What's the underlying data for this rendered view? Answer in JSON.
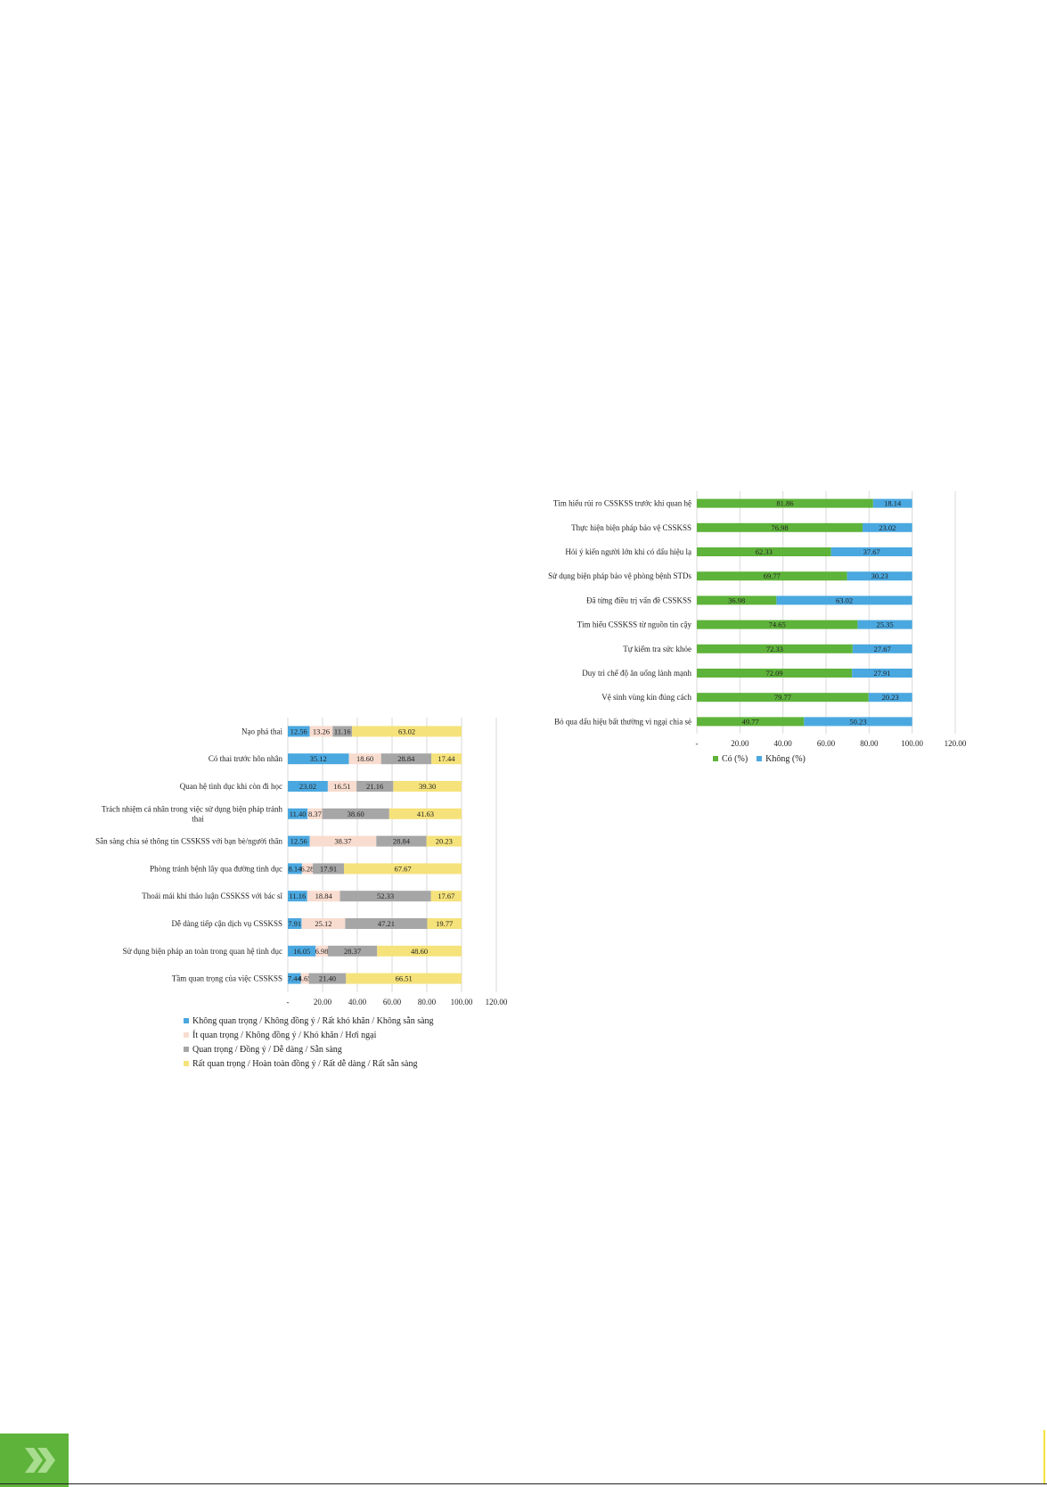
{
  "chart_data": [
    {
      "type": "bar",
      "orientation": "horizontal",
      "stacked": true,
      "categories": [
        "Tìm hiểu rủi ro CSSKSS trước khi quan hệ",
        "Thực hiện biện pháp bảo vệ CSSKSS",
        "Hỏi ý kiến người lớn khi có dấu hiệu lạ",
        "Sử dụng biện pháp bảo vệ phòng bệnh STDs",
        "Đã từng điều trị vấn đề CSSKSS",
        "Tìm hiểu CSSKSS từ nguồn tin cậy",
        "Tự kiểm tra sức khỏe",
        "Duy trì chế độ ăn uống lành mạnh",
        "Vệ sinh vùng kín đúng cách",
        "Bỏ qua dấu hiệu bất thường vì ngại chia sẻ"
      ],
      "series": [
        {
          "name": "Có (%)",
          "color": "#5eb33a",
          "values": [
            81.86,
            76.98,
            62.33,
            69.77,
            36.98,
            74.65,
            72.33,
            72.09,
            79.77,
            49.77
          ]
        },
        {
          "name": "Không (%)",
          "color": "#4aa8e0",
          "values": [
            18.14,
            23.02,
            37.67,
            30.23,
            63.02,
            25.35,
            27.67,
            27.91,
            20.23,
            50.23
          ]
        }
      ],
      "xlim": [
        0,
        120
      ],
      "ticks": [
        "-",
        "20.00",
        "40.00",
        "60.00",
        "80.00",
        "100.00",
        "120.00"
      ],
      "grid": true,
      "legend": "bottom"
    },
    {
      "type": "bar",
      "orientation": "horizontal",
      "stacked": true,
      "categories": [
        "Nạo phá thai",
        "Có thai trước hôn nhân",
        "Quan hệ tình dục khi còn đi học",
        "Trách nhiệm cá nhân trong việc sử dụng biện pháp tránh thai",
        "Sẵn sàng chia sẻ thông tin CSSKSS với bạn bè/người thân",
        "Phòng tránh bệnh lây qua đường tình dục",
        "Thoải mái khi thảo luận CSSKSS với bác sĩ",
        "Dễ dàng tiếp cận dịch vụ CSSKSS",
        "Sử dụng biện pháp an toàn trong quan hệ tình dục",
        "Tầm quan trọng của việc CSSKSS"
      ],
      "category_lines": [
        [
          "Nạo phá thai"
        ],
        [
          "Có thai trước hôn nhân"
        ],
        [
          "Quan hệ tình dục khi còn đi học"
        ],
        [
          "Trách nhiệm cá nhân trong việc sử dụng biện pháp tránh",
          "thai"
        ],
        [
          "Sẵn sàng chia sẻ thông tin CSSKSS với bạn bè/người thân"
        ],
        [
          "Phòng tránh bệnh lây qua đường tình dục"
        ],
        [
          "Thoải mái khi thảo luận CSSKSS với bác sĩ"
        ],
        [
          "Dễ dàng tiếp cận dịch vụ CSSKSS"
        ],
        [
          "Sử dụng biện pháp an toàn trong quan hệ tình dục"
        ],
        [
          "Tầm quan trọng của việc CSSKSS"
        ]
      ],
      "series": [
        {
          "name": "Không quan trọng / Không đồng ý / Rất khó khăn / Không sẵn sàng",
          "color": "#4aa8e0",
          "values": [
            12.56,
            35.12,
            23.02,
            11.4,
            12.56,
            8.14,
            11.16,
            7.91,
            16.05,
            7.44
          ],
          "labels": [
            "12.56",
            "35.12",
            "23.02",
            "11.40",
            "12.56",
            "8.14",
            "11.16",
            "7.91",
            "16.05",
            "7.44"
          ]
        },
        {
          "name": "Ít quan trọng / Không đồng ý / Khó khăn / Hơi ngại",
          "color": "#f8dccf",
          "values": [
            13.26,
            18.6,
            16.51,
            8.37,
            38.37,
            6.28,
            18.84,
            25.12,
            6.98,
            4.65
          ],
          "labels": [
            "13.26",
            "18.60",
            "16.51",
            "8.37",
            "38.37",
            "6.28",
            "18.84",
            "25.12",
            "6.98",
            "4.65"
          ]
        },
        {
          "name": "Quan trọng / Đồng ý / Dễ dàng / Sẵn sàng",
          "color": "#a6a6a6",
          "values": [
            11.16,
            28.84,
            21.16,
            38.6,
            28.84,
            17.91,
            52.33,
            47.21,
            28.37,
            21.4
          ],
          "labels": [
            "11.16",
            "28.84",
            "21.16",
            "38.60",
            "28.84",
            "17.91",
            "52.33",
            "47.21",
            "28.37",
            "21.40"
          ]
        },
        {
          "name": "Rất quan trọng / Hoàn toàn đồng ý / Rất dễ dàng / Rất sẵn sàng",
          "color": "#f5e27a",
          "values": [
            63.02,
            17.44,
            39.3,
            41.63,
            20.23,
            67.67,
            17.67,
            19.77,
            48.6,
            66.51
          ],
          "labels": [
            "63.02",
            "17.44",
            "39.30",
            "41.63",
            "20.23",
            "67.67",
            "17.67",
            "19.77",
            "48.60",
            "66.51"
          ]
        }
      ],
      "xlim": [
        0,
        120
      ],
      "ticks": [
        "-",
        "20.00",
        "40.00",
        "60.00",
        "80.00",
        "100.00",
        "120.00"
      ],
      "grid": true,
      "legend": "bottom"
    }
  ]
}
